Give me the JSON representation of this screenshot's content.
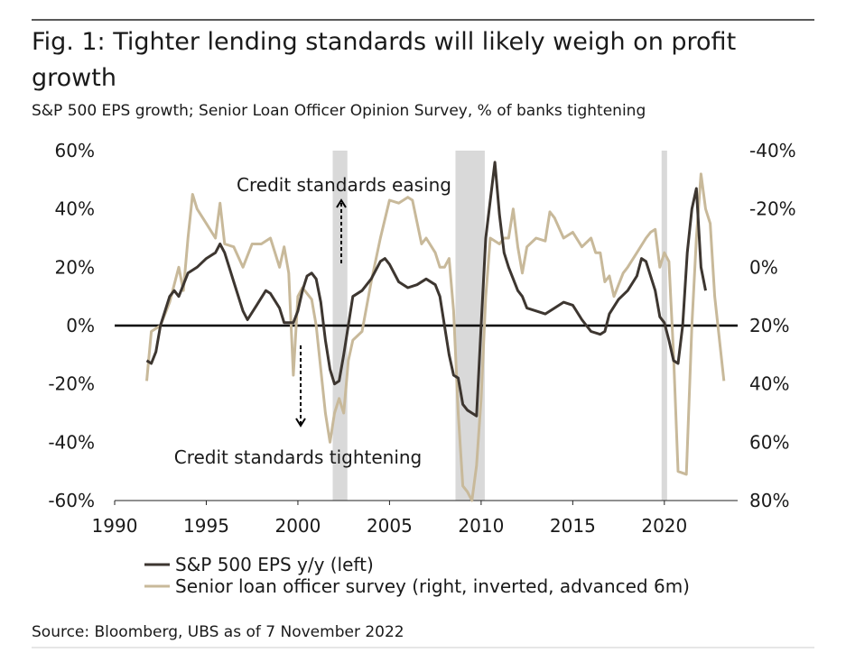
{
  "chart_data": {
    "type": "line",
    "title": "Fig. 1: Tighter lending standards will likely weigh on profit growth",
    "subtitle": "S&P 500 EPS growth; Senior Loan Officer Opinion Survey, % of banks tightening",
    "source": "Source: Bloomberg, UBS as of 7 November 2022",
    "xlim": [
      1990,
      2024
    ],
    "xticks": [
      1990,
      1995,
      2000,
      2005,
      2010,
      2015,
      2020
    ],
    "ylim": [
      -60,
      60
    ],
    "yticks": [
      {
        "value": -60,
        "label": "-60%"
      },
      {
        "value": -40,
        "label": "-40%"
      },
      {
        "value": -20,
        "label": "-20%"
      },
      {
        "value": 0,
        "label": "0%"
      },
      {
        "value": 20,
        "label": "20%"
      },
      {
        "value": 40,
        "label": "40%"
      },
      {
        "value": 60,
        "label": "60%"
      }
    ],
    "y2lim": [
      -40,
      80
    ],
    "y2_inverted": true,
    "y2ticks": [
      {
        "value": -40,
        "label": "-40%"
      },
      {
        "value": -20,
        "label": "-20%"
      },
      {
        "value": 0,
        "label": "0%"
      },
      {
        "value": 20,
        "label": "20%"
      },
      {
        "value": 40,
        "label": "40%"
      },
      {
        "value": 60,
        "label": "60%"
      },
      {
        "value": 80,
        "label": "80%"
      }
    ],
    "zero_line": true,
    "shaded_periods": [
      [
        2001.9,
        2002.7
      ],
      [
        2008.6,
        2010.2
      ],
      [
        2019.85,
        2020.15
      ]
    ],
    "shade_color": "#d9d9d9",
    "annotations": [
      "Credit standards easing",
      "Credit standards tightening"
    ],
    "series": [
      {
        "name": "S&P 500 EPS y/y (left)",
        "color": "#3d3630",
        "x": [
          1991.75,
          1992,
          1992.25,
          1992.5,
          1993,
          1993.25,
          1993.5,
          1994,
          1994.5,
          1995,
          1995.5,
          1995.75,
          1996,
          1996.5,
          1997,
          1997.25,
          1997.75,
          1998.25,
          1998.5,
          1999,
          1999.25,
          1999.75,
          2000,
          2000.25,
          2000.5,
          2000.75,
          2001,
          2001.25,
          2001.5,
          2001.75,
          2002,
          2002.25,
          2002.5,
          2003,
          2003.5,
          2004,
          2004.5,
          2004.75,
          2005,
          2005.5,
          2006,
          2006.5,
          2007,
          2007.5,
          2007.75,
          2008,
          2008.25,
          2008.5,
          2008.75,
          2009,
          2009.25,
          2009.5,
          2009.75,
          2010,
          2010.25,
          2010.75,
          2011,
          2011.25,
          2011.5,
          2012,
          2012.25,
          2012.5,
          2013,
          2013.5,
          2014,
          2014.5,
          2015,
          2015.5,
          2016,
          2016.5,
          2016.75,
          2017,
          2017.5,
          2018,
          2018.5,
          2018.75,
          2019,
          2019.5,
          2019.75,
          2020,
          2020.25,
          2020.5,
          2020.75,
          2021,
          2021.25,
          2021.5,
          2021.75,
          2022,
          2022.25
        ],
        "values": [
          -12,
          -13,
          -9,
          0,
          10,
          12,
          10,
          18,
          20,
          23,
          25,
          28,
          25,
          15,
          5,
          2,
          7,
          12,
          11,
          6,
          1,
          1,
          5,
          12,
          17,
          18,
          16,
          8,
          -5,
          -15,
          -20,
          -19,
          -10,
          10,
          12,
          16,
          22,
          23,
          21,
          15,
          13,
          14,
          16,
          14,
          10,
          0,
          -10,
          -17,
          -18,
          -27,
          -29,
          -30,
          -31,
          0,
          30,
          56,
          38,
          25,
          20,
          12,
          10,
          6,
          5,
          4,
          6,
          8,
          7,
          2,
          -2,
          -3,
          -2,
          4,
          9,
          12,
          17,
          23,
          22,
          12,
          3,
          1,
          -5,
          -12,
          -13,
          0,
          25,
          40,
          47,
          20,
          12
        ]
      },
      {
        "name": "Senior loan officer survey (right, inverted, advanced 6m)",
        "color": "#c8b99a",
        "axis": "y2",
        "x": [
          1991.75,
          1992,
          1992.5,
          1993,
          1993.5,
          1993.75,
          1994,
          1994.25,
          1994.5,
          1995,
          1995.5,
          1995.75,
          1996,
          1996.5,
          1997,
          1997.5,
          1998,
          1998.5,
          1998.75,
          1999,
          1999.25,
          1999.5,
          1999.75,
          2000,
          2000.25,
          2000.75,
          2001,
          2001.25,
          2001.5,
          2001.75,
          2002,
          2002.25,
          2002.5,
          2002.75,
          2003,
          2003.5,
          2004,
          2004.5,
          2005,
          2005.5,
          2006,
          2006.25,
          2006.75,
          2007,
          2007.5,
          2007.75,
          2008,
          2008.25,
          2008.5,
          2008.75,
          2009,
          2009.25,
          2009.5,
          2009.75,
          2010,
          2010.25,
          2010.5,
          2011,
          2011.25,
          2011.5,
          2011.75,
          2012,
          2012.25,
          2012.5,
          2013,
          2013.5,
          2013.75,
          2014,
          2014.5,
          2015,
          2015.5,
          2016,
          2016.25,
          2016.5,
          2016.75,
          2017,
          2017.25,
          2017.5,
          2017.75,
          2018,
          2018.5,
          2019,
          2019.25,
          2019.5,
          2019.75,
          2020,
          2020.25,
          2020.5,
          2020.75,
          2021.2,
          2021.5,
          2021.75,
          2022,
          2022.25,
          2022.5,
          2022.75,
          2023.25
        ],
        "values": [
          39,
          22,
          20,
          12,
          0,
          8,
          -10,
          -25,
          -20,
          -15,
          -10,
          -22,
          -8,
          -7,
          0,
          -8,
          -8,
          -10,
          -5,
          0,
          -7,
          2,
          37,
          10,
          7,
          11,
          20,
          35,
          50,
          60,
          50,
          45,
          50,
          32,
          25,
          22,
          5,
          -10,
          -23,
          -22,
          -24,
          -23,
          -8,
          -10,
          -5,
          0,
          0,
          -3,
          15,
          50,
          75,
          77,
          80,
          68,
          45,
          10,
          -10,
          -8,
          -10,
          -10,
          -20,
          -7,
          2,
          -7,
          -10,
          -9,
          -19,
          -17,
          -10,
          -12,
          -7,
          -10,
          -5,
          -5,
          5,
          3,
          10,
          6,
          2,
          0,
          -5,
          -10,
          -12,
          -13,
          0,
          -5,
          -2,
          30,
          70,
          71,
          20,
          -10,
          -32,
          -20,
          -15,
          10,
          39
        ]
      }
    ]
  }
}
